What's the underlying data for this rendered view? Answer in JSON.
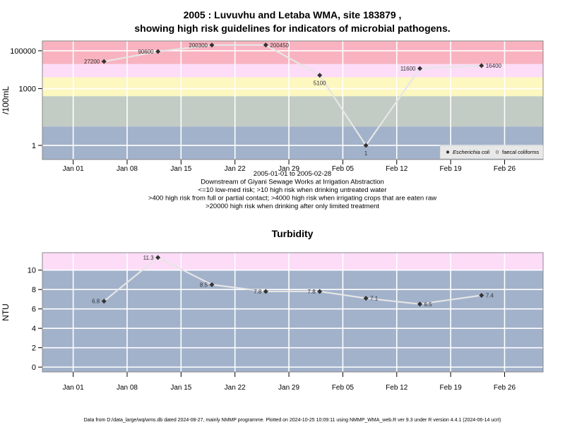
{
  "title_line1": "2005 : Luvuvhu and Letaba WMA, site 183879 ,",
  "title_line2": "showing high risk guidelines for indicators of microbial pathogens.",
  "colors": {
    "band_red": "#f9b3c0",
    "band_pink": "#fddcf8",
    "band_yellow": "#fdf7c0",
    "band_sage": "#c2cbc4",
    "band_blue": "#a2b2cb",
    "line": "#e6e6e6",
    "point": "#333333",
    "grid": "#ffffff"
  },
  "chart_data": [
    {
      "type": "line",
      "id": "microbial",
      "ylabel": "/100mL",
      "yscale": "log",
      "ylim": [
        0.18,
        330000
      ],
      "yticks": [
        {
          "value": 1,
          "label": "1"
        },
        {
          "value": 1000,
          "label": "1000"
        },
        {
          "value": 100000,
          "label": "100000"
        }
      ],
      "xlim": [
        "2004-12-28",
        "2005-03-03"
      ],
      "xticks": [
        {
          "date": "2005-01-01",
          "label": "Jan 01"
        },
        {
          "date": "2005-01-08",
          "label": "Jan 08"
        },
        {
          "date": "2005-01-15",
          "label": "Jan 15"
        },
        {
          "date": "2005-01-22",
          "label": "Jan 22"
        },
        {
          "date": "2005-01-29",
          "label": "Jan 29"
        },
        {
          "date": "2005-02-05",
          "label": "Feb 05"
        },
        {
          "date": "2005-02-12",
          "label": "Feb 12"
        },
        {
          "date": "2005-02-19",
          "label": "Feb 19"
        },
        {
          "date": "2005-02-26",
          "label": "Feb 26"
        }
      ],
      "bands": [
        {
          "from": 0.18,
          "to": 10,
          "color": "#a2b2cb"
        },
        {
          "from": 10,
          "to": 400,
          "color": "#c2cbc4"
        },
        {
          "from": 400,
          "to": 4000,
          "color": "#fdf7c0"
        },
        {
          "from": 4000,
          "to": 20000,
          "color": "#fddcf8"
        },
        {
          "from": 20000,
          "to": 330000,
          "color": "#f9b3c0"
        }
      ],
      "series": [
        {
          "name": "Escherichia coli",
          "points": [
            {
              "date": "2005-01-05",
              "value": 27200,
              "label": "27200",
              "label_side": "left"
            },
            {
              "date": "2005-01-12",
              "value": 90600,
              "label": "90600",
              "label_side": "left"
            },
            {
              "date": "2005-01-19",
              "value": 200300,
              "label": "200300",
              "label_side": "left"
            },
            {
              "date": "2005-01-26",
              "value": 200450,
              "label": "200450",
              "label_side": "right"
            },
            {
              "date": "2005-02-02",
              "value": 5100,
              "label": "5100",
              "label_side": "below"
            },
            {
              "date": "2005-02-08",
              "value": 1,
              "label": "1",
              "label_side": "below"
            },
            {
              "date": "2005-02-15",
              "value": 11600,
              "label": "11600",
              "label_side": "left"
            },
            {
              "date": "2005-02-23",
              "value": 16400,
              "label": "16400",
              "label_side": "right"
            }
          ]
        }
      ],
      "legend": {
        "position": "bottom-right",
        "entries": [
          {
            "label": "Escherichia coli",
            "marker": "filled",
            "italic": true
          },
          {
            "label": "faecal coliforms",
            "marker": "open",
            "italic": false
          }
        ]
      },
      "notes": [
        "2005-01-01 to 2005-02-28",
        "Downstream of Giyani Sewage Works at Irrigation Abstraction",
        "<=10 low-med risk; >10 high risk when drinking untreated water",
        ">400 high risk from full or partial contact; >4000 high risk when irrigating crops that are eaten raw",
        ">20000 high risk when drinking after only limited treatment"
      ]
    },
    {
      "type": "line",
      "id": "turbidity",
      "title": "Turbidity",
      "ylabel": "NTU",
      "yscale": "linear",
      "ylim": [
        -0.5,
        11.8
      ],
      "yticks": [
        {
          "value": 0,
          "label": "0"
        },
        {
          "value": 2,
          "label": "2"
        },
        {
          "value": 4,
          "label": "4"
        },
        {
          "value": 6,
          "label": "6"
        },
        {
          "value": 8,
          "label": "8"
        },
        {
          "value": 10,
          "label": "10"
        }
      ],
      "xlim": [
        "2004-12-28",
        "2005-03-03"
      ],
      "xticks": [
        {
          "date": "2005-01-01",
          "label": "Jan 01"
        },
        {
          "date": "2005-01-08",
          "label": "Jan 08"
        },
        {
          "date": "2005-01-15",
          "label": "Jan 15"
        },
        {
          "date": "2005-01-22",
          "label": "Jan 22"
        },
        {
          "date": "2005-01-29",
          "label": "Jan 29"
        },
        {
          "date": "2005-02-05",
          "label": "Feb 05"
        },
        {
          "date": "2005-02-12",
          "label": "Feb 12"
        },
        {
          "date": "2005-02-19",
          "label": "Feb 19"
        },
        {
          "date": "2005-02-26",
          "label": "Feb 26"
        }
      ],
      "bands": [
        {
          "from": -0.5,
          "to": 10,
          "color": "#a2b2cb"
        },
        {
          "from": 10,
          "to": 11.8,
          "color": "#fddcf8"
        }
      ],
      "series": [
        {
          "points": [
            {
              "date": "2005-01-05",
              "value": 6.8,
              "label": "6.8",
              "label_side": "left"
            },
            {
              "date": "2005-01-12",
              "value": 11.3,
              "label": "11.3",
              "label_side": "left"
            },
            {
              "date": "2005-01-19",
              "value": 8.5,
              "label": "8.5",
              "label_side": "left"
            },
            {
              "date": "2005-01-26",
              "value": 7.8,
              "label": "7.8",
              "label_side": "left"
            },
            {
              "date": "2005-02-02",
              "value": 7.8,
              "label": "7.8",
              "label_side": "left"
            },
            {
              "date": "2005-02-08",
              "value": 7.1,
              "label": "7.1",
              "label_side": "right"
            },
            {
              "date": "2005-02-15",
              "value": 6.5,
              "label": "6.5",
              "label_side": "right"
            },
            {
              "date": "2005-02-23",
              "value": 7.4,
              "label": "7.4",
              "label_side": "right"
            }
          ]
        }
      ]
    }
  ],
  "footer": "Data from D:/data_large/wq/wms.db dated 2024-08-27, mainly NMMP programme. Plotted on 2024-10-25 10:09:11 using NMMP_WMA_web.R ver 9.3 under R version 4.4.1 (2024-06-14 ucrt)"
}
